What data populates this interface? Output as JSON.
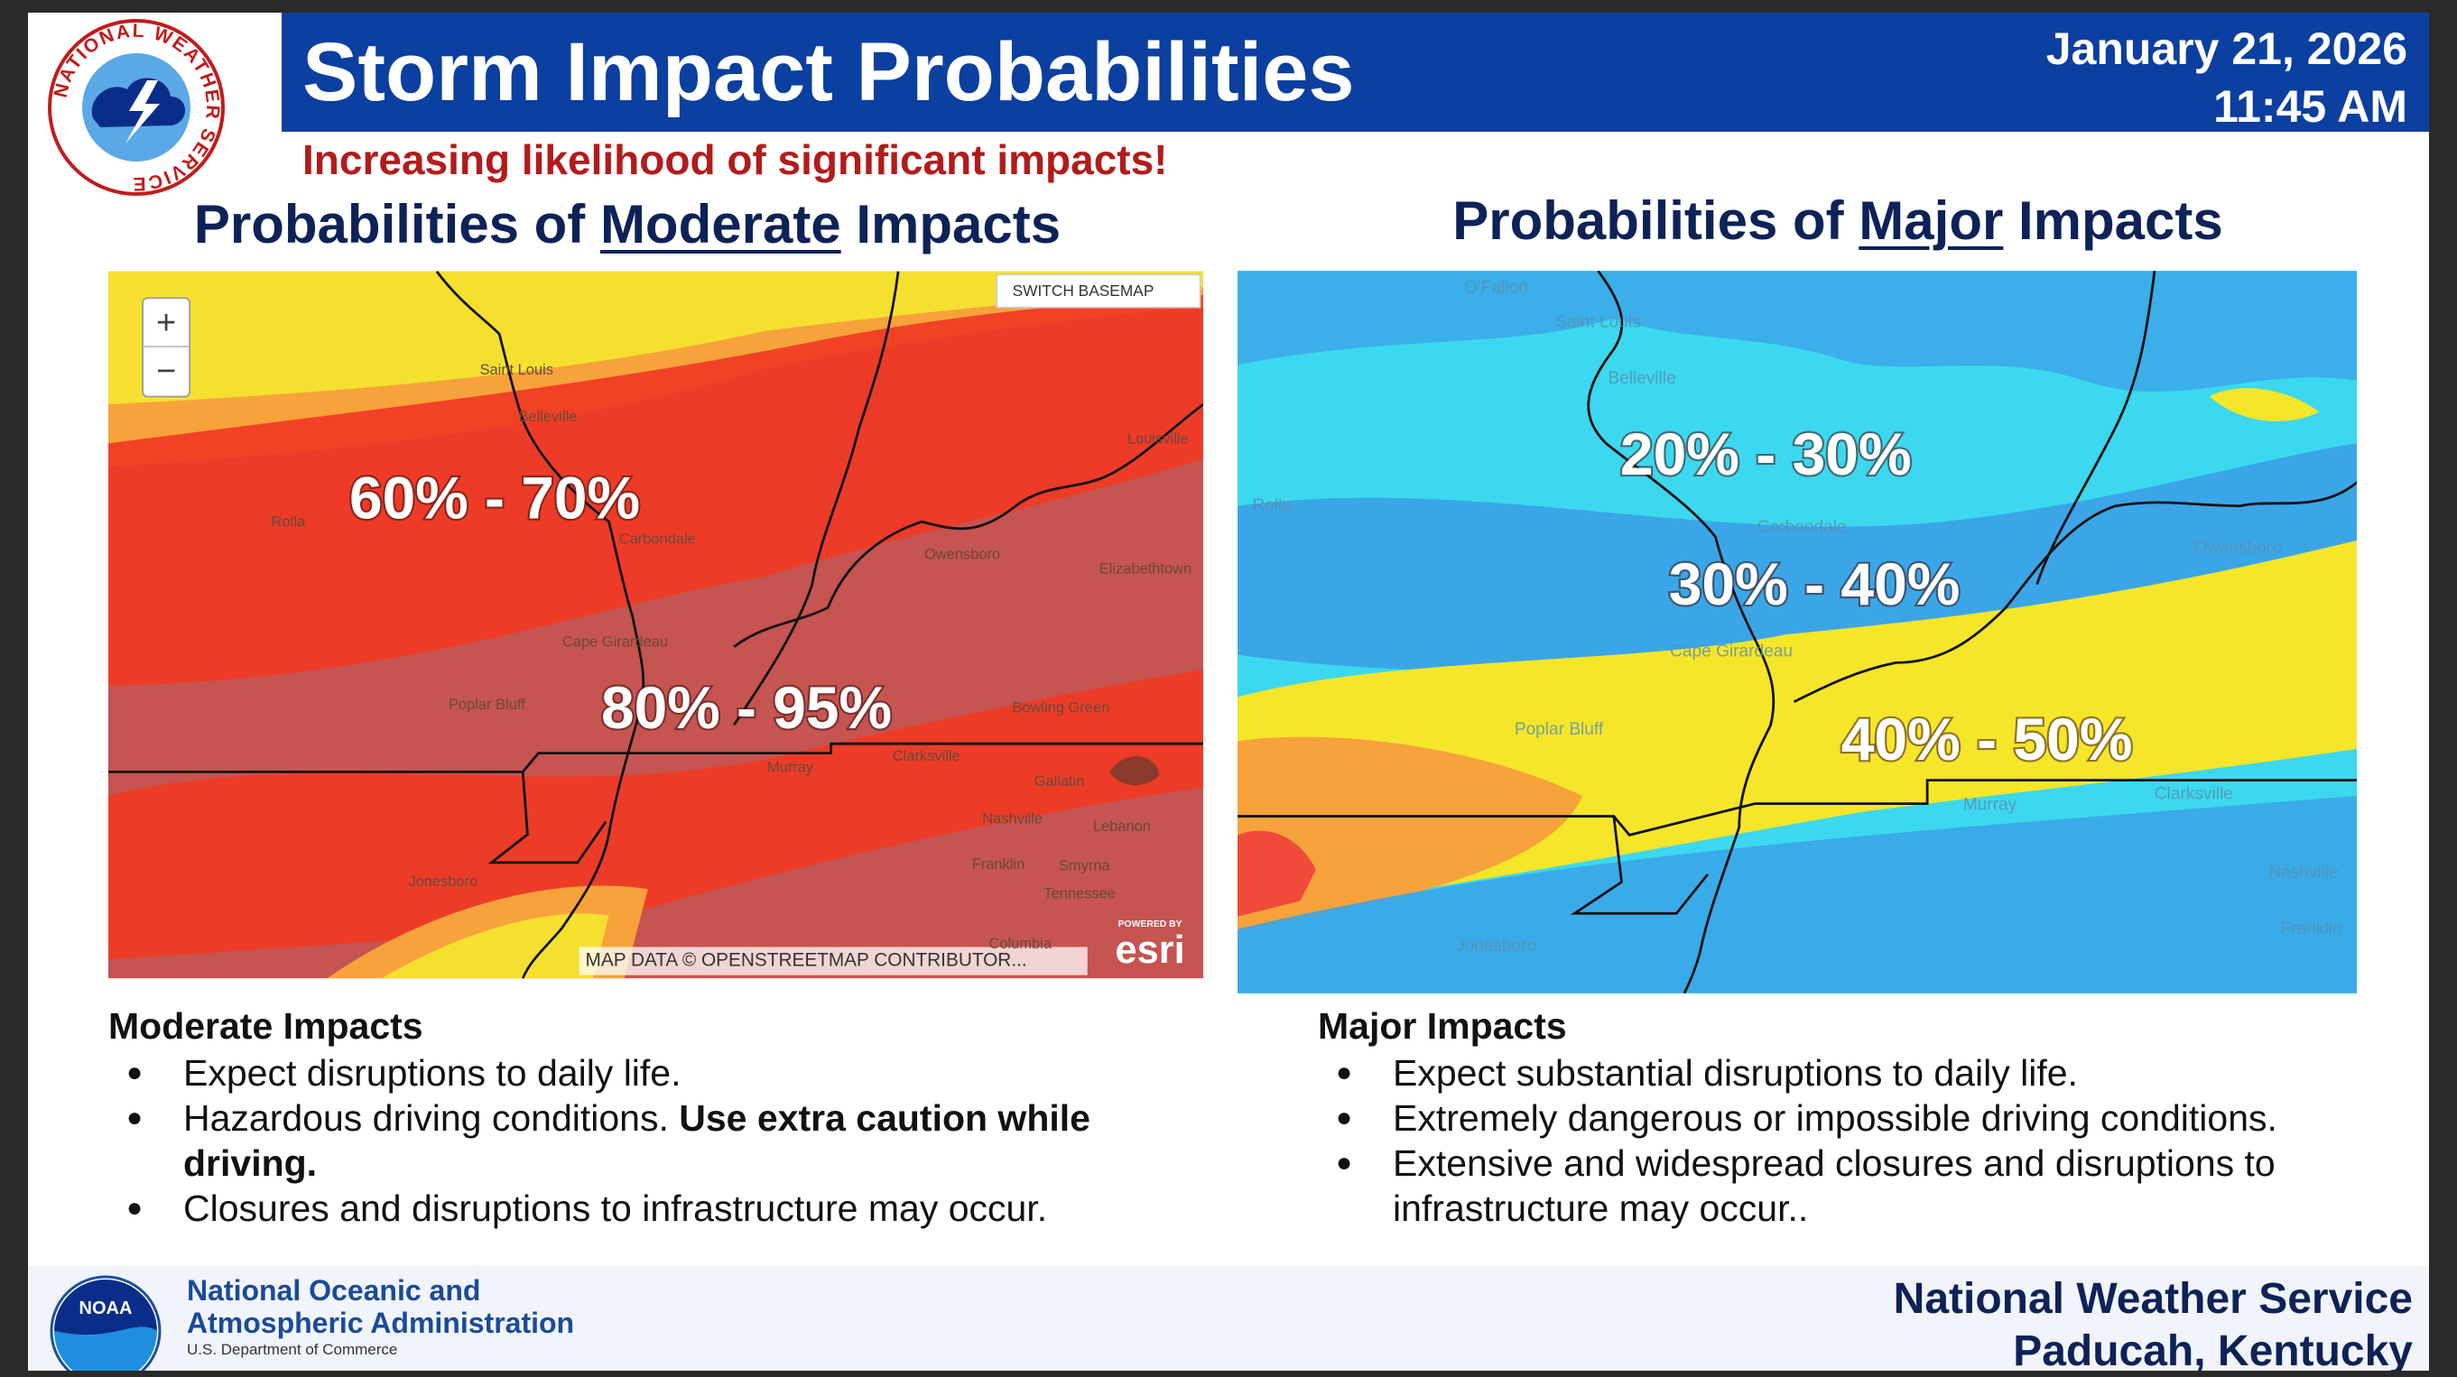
{
  "header": {
    "title": "Storm Impact Probabilities",
    "subtitle": "Increasing likelihood of significant impacts!",
    "date": "January 21, 2026",
    "time": "11:45 AM",
    "logo_text": "NATIONAL WEATHER SERVICE"
  },
  "panels": [
    {
      "heading": {
        "prefix": "Probabilities of ",
        "emphasis": "Moderate",
        "suffix": " Impacts"
      },
      "map": {
        "labels": [
          "60% -  70%",
          "80% - 95%"
        ],
        "places": [
          "Saint Louis",
          "Belleville",
          "Rolla",
          "Carbondale",
          "Owensboro",
          "Elizabethtown",
          "Louisville",
          "Cape Girardeau",
          "Poplar Bluff",
          "Bowling Green",
          "Clarksville",
          "Murray",
          "Gallatin",
          "Nashville",
          "Lebanon",
          "Franklin",
          "Smyrna",
          "Tennessee",
          "Jonesboro",
          "Columbia"
        ],
        "controls": {
          "zoom_in": "+",
          "zoom_out": "−",
          "basemap": "SWITCH BASEMAP",
          "attribution": "MAP DATA © OPENSTREETMAP CONTRIBUTOR...",
          "powered_by": "POWERED BY",
          "provider": "esri"
        }
      },
      "details": {
        "title": "Moderate Impacts",
        "bullets": [
          {
            "text": "Expect disruptions to daily life."
          },
          {
            "text": "Hazardous driving conditions. ",
            "bold": "Use extra caution while driving."
          },
          {
            "text": "Closures and disruptions to infrastructure may occur."
          }
        ]
      }
    },
    {
      "heading": {
        "prefix": "Probabilities of ",
        "emphasis": "Major",
        "suffix": " Impacts"
      },
      "map": {
        "labels": [
          "20% - 30%",
          "30% -  40%",
          "40% - 50%"
        ],
        "places": [
          "O'Fallon",
          "Saint Louis",
          "Belleville",
          "Rolla",
          "Carbondale",
          "Owensboro",
          "Cape Girardeau",
          "Poplar Bluff",
          "Murray",
          "Clarksville",
          "Nashville",
          "Jonesboro",
          "Franklin"
        ]
      },
      "details": {
        "title": "Major Impacts",
        "bullets": [
          {
            "text": "Expect substantial disruptions to daily life."
          },
          {
            "text": "Extremely dangerous or impossible driving conditions."
          },
          {
            "text": "Extensive and widespread closures and disruptions to infrastructure may occur.."
          }
        ]
      }
    }
  ],
  "footer": {
    "agency": [
      "National Oceanic and",
      "Atmospheric Administration"
    ],
    "department": "U.S. Department of Commerce",
    "logo_text": "NOAA",
    "office": [
      "National Weather Service",
      "Paducah, Kentucky"
    ]
  }
}
